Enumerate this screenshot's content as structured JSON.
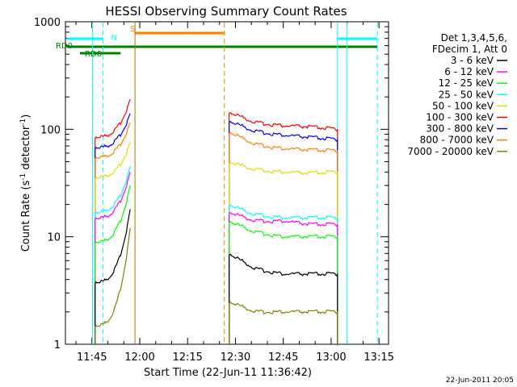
{
  "chart_data": {
    "type": "line",
    "title": "HESSI Observing Summary Count Rates",
    "xlabel": "Start Time (22-Jun-11 11:36:42)",
    "ylabel_main": "Count Rate (s",
    "ylabel_sup1": "-1",
    "ylabel_mid": " detector",
    "ylabel_sup2": "-1",
    "ylabel_end": ")",
    "y_scale": "log",
    "ylim": [
      1,
      1000
    ],
    "xlim": [
      "11:36:42",
      "13:18:00"
    ],
    "x_ticks": [
      "11:45",
      "12:00",
      "12:15",
      "12:30",
      "12:45",
      "13:00",
      "13:15"
    ],
    "y_ticks": [
      "1",
      "10",
      "100",
      "1000"
    ],
    "legend": {
      "placement": "right",
      "header1": "Det 1,3,4,5,6,",
      "header2": "FDecim 1, Att 0",
      "entries": [
        {
          "label": "3 - 6 keV",
          "color": "#000000"
        },
        {
          "label": "6 - 12 keV",
          "color": "#ff00ff"
        },
        {
          "label": "12 - 25 keV",
          "color": "#00ff00"
        },
        {
          "label": "25 - 50 keV",
          "color": "#00ffff"
        },
        {
          "label": "50 - 100 keV",
          "color": "#dddd00"
        },
        {
          "label": "100 - 300 keV",
          "color": "#ff0000"
        },
        {
          "label": "300 - 800 keV",
          "color": "#0000ff"
        },
        {
          "label": "800 - 7000 keV",
          "color": "#ff8000"
        },
        {
          "label": "7000 - 20000 keV",
          "color": "#808000"
        }
      ]
    },
    "flags": [
      {
        "label": "N",
        "color": "#00ffff"
      },
      {
        "label": "S",
        "color": "#ff8000"
      },
      {
        "label": "RD0",
        "color": "#008000"
      },
      {
        "label": "RD6",
        "color": "#008000"
      }
    ],
    "series": [
      {
        "name": "100 - 300 keV",
        "color": "#ff0000",
        "x1": [
          "11:46",
          "11:57"
        ],
        "y1": [
          85,
          190
        ],
        "x2": [
          "12:28",
          "13:02"
        ],
        "y2": [
          [
            145,
            115,
            108,
            105,
            100
          ]
        ]
      },
      {
        "name": "300 - 800 keV",
        "color": "#0000ff",
        "x1": [
          "11:46",
          "11:57"
        ],
        "y1": [
          68,
          140
        ],
        "x2": [
          "12:28",
          "13:02"
        ],
        "y2": [
          [
            120,
            95,
            88,
            84,
            80
          ]
        ]
      },
      {
        "name": "800 - 7000 keV",
        "color": "#ff8000",
        "x1": [
          "11:46",
          "11:57"
        ],
        "y1": [
          55,
          115
        ],
        "x2": [
          "12:28",
          "13:02"
        ],
        "y2": [
          [
            95,
            72,
            66,
            64,
            63
          ]
        ]
      },
      {
        "name": "50 - 100 keV",
        "color": "#dddd00",
        "x1": [
          "11:46",
          "11:57"
        ],
        "y1": [
          36,
          75
        ],
        "x2": [
          "12:28",
          "13:02"
        ],
        "y2": [
          [
            50,
            42,
            40,
            39,
            40
          ]
        ]
      },
      {
        "name": "25 - 50 keV",
        "color": "#00ffff",
        "x1": [
          "11:46",
          "11:57"
        ],
        "y1": [
          17,
          45
        ],
        "x2": [
          "12:28",
          "13:02"
        ],
        "y2": [
          [
            20,
            16,
            15,
            15,
            15
          ]
        ]
      },
      {
        "name": "6 - 12 keV",
        "color": "#ff00ff",
        "x1": [
          "11:46",
          "11:57"
        ],
        "y1": [
          15,
          40
        ],
        "x2": [
          "12:28",
          "13:02"
        ],
        "y2": [
          [
            17,
            14,
            14,
            13,
            13
          ]
        ]
      },
      {
        "name": "12 - 25 keV",
        "color": "#00ff00",
        "x1": [
          "11:46",
          "11:57"
        ],
        "y1": [
          9,
          30
        ],
        "x2": [
          "12:28",
          "13:02"
        ],
        "y2": [
          [
            14,
            11,
            10,
            10,
            10
          ]
        ]
      },
      {
        "name": "3 - 6 keV",
        "color": "#000000",
        "x1": [
          "11:46",
          "11:57"
        ],
        "y1": [
          3.8,
          18
        ],
        "x2": [
          "12:28",
          "13:02"
        ],
        "y2": [
          [
            7,
            5,
            4.5,
            4.5,
            4.5
          ]
        ]
      },
      {
        "name": "7000 - 20000 keV",
        "color": "#808000",
        "x1": [
          "11:46",
          "11:57"
        ],
        "y1": [
          1.5,
          12
        ],
        "x2": [
          "12:28",
          "13:02"
        ],
        "y2": [
          [
            2.5,
            2,
            2,
            2,
            2
          ]
        ]
      }
    ],
    "footer_date": "22-Jun-2011 20:05"
  }
}
